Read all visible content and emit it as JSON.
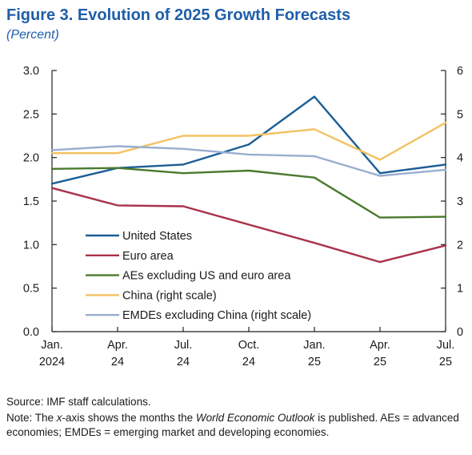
{
  "figure": {
    "title": "Figure 3.  Evolution of 2025 Growth Forecasts",
    "subtitle": "(Percent)"
  },
  "chart_data": {
    "type": "line",
    "categories": [
      [
        "Jan.",
        "2024"
      ],
      [
        "Apr.",
        "24"
      ],
      [
        "Jul.",
        "24"
      ],
      [
        "Oct.",
        "24"
      ],
      [
        "Jan.",
        "25"
      ],
      [
        "Apr.",
        "25"
      ],
      [
        "Jul.",
        "25"
      ]
    ],
    "ylim": [
      0,
      3.0
    ],
    "yticks": [
      "0.0",
      "0.5",
      "1.0",
      "1.5",
      "2.0",
      "2.5",
      "3.0"
    ],
    "y2lim": [
      0,
      6
    ],
    "y2ticks": [
      "0",
      "1",
      "2",
      "3",
      "4",
      "5",
      "6"
    ],
    "grid": false,
    "legend_position": "lower-left",
    "series": [
      {
        "name": "United States",
        "axis": "left",
        "color": "#1b5e96",
        "x": [
          0,
          1,
          2,
          3,
          4,
          5,
          6
        ],
        "values": [
          1.7,
          1.88,
          1.92,
          2.15,
          2.7,
          1.82,
          1.92
        ]
      },
      {
        "name": "Euro area",
        "axis": "left",
        "color": "#a8324a",
        "x": [
          0,
          1,
          2,
          4,
          5,
          6
        ],
        "values": [
          1.65,
          1.45,
          1.44,
          1.02,
          0.8,
          0.99
        ]
      },
      {
        "name": "AEs excluding US and euro area",
        "axis": "left",
        "color": "#4a7a2c",
        "x": [
          0,
          1,
          2,
          3,
          4,
          5,
          6
        ],
        "values": [
          1.87,
          1.88,
          1.82,
          1.85,
          1.77,
          1.31,
          1.32
        ]
      },
      {
        "name": "China (right scale)",
        "axis": "right",
        "color": "#f3c261",
        "x": [
          0,
          1,
          2,
          3,
          4,
          5,
          6
        ],
        "values": [
          4.1,
          4.1,
          4.5,
          4.5,
          4.65,
          3.95,
          4.8
        ]
      },
      {
        "name": "EMDEs excluding China (right scale)",
        "axis": "right",
        "color": "#98aed0",
        "x": [
          0,
          1,
          2,
          3,
          4,
          5,
          6
        ],
        "values": [
          4.17,
          4.26,
          4.2,
          4.07,
          4.03,
          3.58,
          3.72
        ]
      }
    ]
  },
  "footnotes": {
    "source": "Source: IMF staff calculations.",
    "note_prefix": "Note: The ",
    "note_x": "x",
    "note_mid": "-axis shows the months the ",
    "note_weo": "World Economic Outlook",
    "note_rest": " is published. AEs = advanced economies; EMDEs = emerging market and developing economies."
  }
}
